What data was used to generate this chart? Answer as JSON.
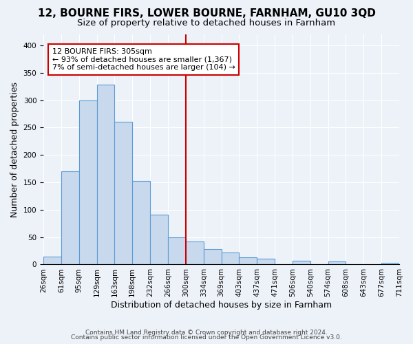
{
  "title": "12, BOURNE FIRS, LOWER BOURNE, FARNHAM, GU10 3QD",
  "subtitle": "Size of property relative to detached houses in Farnham",
  "xlabel": "Distribution of detached houses by size in Farnham",
  "ylabel": "Number of detached properties",
  "bin_labels": [
    "26sqm",
    "61sqm",
    "95sqm",
    "129sqm",
    "163sqm",
    "198sqm",
    "232sqm",
    "266sqm",
    "300sqm",
    "334sqm",
    "369sqm",
    "403sqm",
    "437sqm",
    "471sqm",
    "506sqm",
    "540sqm",
    "574sqm",
    "608sqm",
    "643sqm",
    "677sqm",
    "711sqm"
  ],
  "bar_values": [
    14,
    170,
    300,
    328,
    260,
    152,
    91,
    50,
    42,
    28,
    22,
    13,
    10,
    0,
    7,
    0,
    6,
    0,
    0,
    3
  ],
  "bar_color": "#c8d9ed",
  "bar_edge_color": "#5b9bd5",
  "vline_x_index": 8,
  "vline_color": "#cc0000",
  "annotation_title": "12 BOURNE FIRS: 305sqm",
  "annotation_line1": "← 93% of detached houses are smaller (1,367)",
  "annotation_line2": "7% of semi-detached houses are larger (104) →",
  "annotation_box_edgecolor": "#cc0000",
  "ylim": [
    0,
    420
  ],
  "yticks": [
    0,
    50,
    100,
    150,
    200,
    250,
    300,
    350,
    400
  ],
  "footnote1": "Contains HM Land Registry data © Crown copyright and database right 2024.",
  "footnote2": "Contains public sector information licensed under the Open Government Licence v3.0.",
  "bg_color": "#edf2f9",
  "grid_color": "#ffffff",
  "title_fontsize": 11,
  "subtitle_fontsize": 9.5,
  "axis_label_fontsize": 9,
  "tick_fontsize": 7.5,
  "annotation_fontsize": 8
}
